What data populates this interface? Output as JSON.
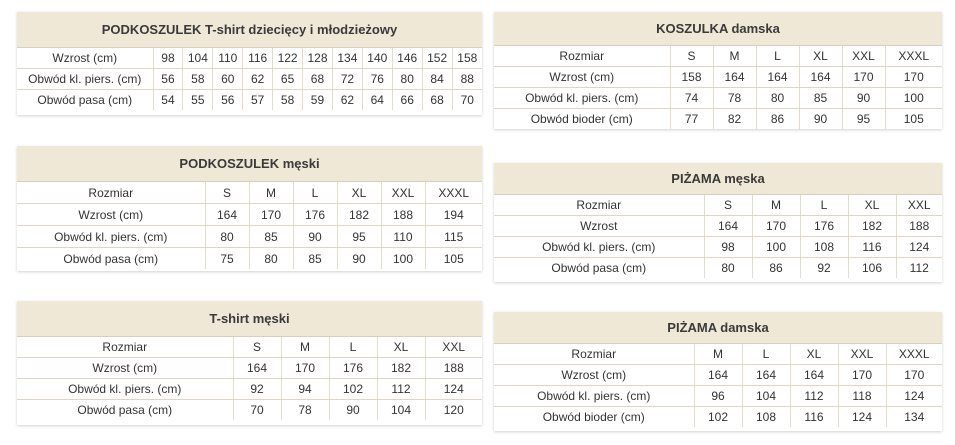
{
  "tables": [
    {
      "id": "kids",
      "title": "PODKOSZULEK T-shirt dziecięcy i młodzieżowy",
      "rows": [
        [
          "Wzrost (cm)",
          "98",
          "104",
          "110",
          "116",
          "122",
          "128",
          "134",
          "140",
          "146",
          "152",
          "158"
        ],
        [
          "Obwód kl. piers. (cm)",
          "56",
          "58",
          "60",
          "62",
          "65",
          "68",
          "72",
          "76",
          "80",
          "84",
          "88"
        ],
        [
          "Obwód pasa (cm)",
          "54",
          "55",
          "56",
          "57",
          "58",
          "59",
          "62",
          "64",
          "66",
          "68",
          "70"
        ]
      ]
    },
    {
      "id": "koszulka-damska",
      "title": "KOSZULKA damska",
      "rows": [
        [
          "Rozmiar",
          "S",
          "M",
          "L",
          "XL",
          "XXL",
          "XXXL"
        ],
        [
          "Wzrost (cm)",
          "158",
          "164",
          "164",
          "164",
          "170",
          "170"
        ],
        [
          "Obwód kl. piers. (cm)",
          "74",
          "78",
          "80",
          "85",
          "90",
          "100"
        ],
        [
          "Obwód bioder (cm)",
          "77",
          "82",
          "86",
          "90",
          "95",
          "105"
        ]
      ]
    },
    {
      "id": "podkoszulek-meski",
      "title": "PODKOSZULEK męski",
      "rows": [
        [
          "Rozmiar",
          "S",
          "M",
          "L",
          "XL",
          "XXL",
          "XXXL"
        ],
        [
          "Wzrost (cm)",
          "164",
          "170",
          "176",
          "182",
          "188",
          "194"
        ],
        [
          "Obwód kl. piers. (cm)",
          "80",
          "85",
          "90",
          "95",
          "110",
          "115"
        ],
        [
          "Obwód pasa (cm)",
          "75",
          "80",
          "85",
          "90",
          "100",
          "105"
        ]
      ]
    },
    {
      "id": "pizama-meska",
      "title": "PIŻAMA męska",
      "rows": [
        [
          "Rozmiar",
          "S",
          "M",
          "L",
          "XL",
          "XXL"
        ],
        [
          "Wzrost",
          "164",
          "170",
          "176",
          "182",
          "188"
        ],
        [
          "Obwód kl. piers. (cm)",
          "98",
          "100",
          "108",
          "116",
          "124"
        ],
        [
          "Obwód pasa (cm)",
          "80",
          "86",
          "92",
          "106",
          "112"
        ]
      ]
    },
    {
      "id": "tshirt-meski",
      "title": "T-shirt męski",
      "rows": [
        [
          "Rozmiar",
          "S",
          "M",
          "L",
          "XL",
          "XXL"
        ],
        [
          "Wzrost (cm)",
          "164",
          "170",
          "176",
          "182",
          "188"
        ],
        [
          "Obwód kl. piers. (cm)",
          "92",
          "94",
          "102",
          "112",
          "124"
        ],
        [
          "Obwód pasa (cm)",
          "70",
          "78",
          "90",
          "104",
          "120"
        ]
      ]
    },
    {
      "id": "pizama-damska",
      "title": "PIŻAMA damska",
      "rows": [
        [
          "Rozmiar",
          "M",
          "L",
          "XL",
          "XXL",
          "XXXL"
        ],
        [
          "Wzrost (cm)",
          "164",
          "164",
          "164",
          "170",
          "170"
        ],
        [
          "Obwód kl. piers. (cm)",
          "96",
          "104",
          "112",
          "118",
          "124"
        ],
        [
          "Obwód bioder (cm)",
          "102",
          "108",
          "116",
          "124",
          "134"
        ]
      ]
    }
  ]
}
